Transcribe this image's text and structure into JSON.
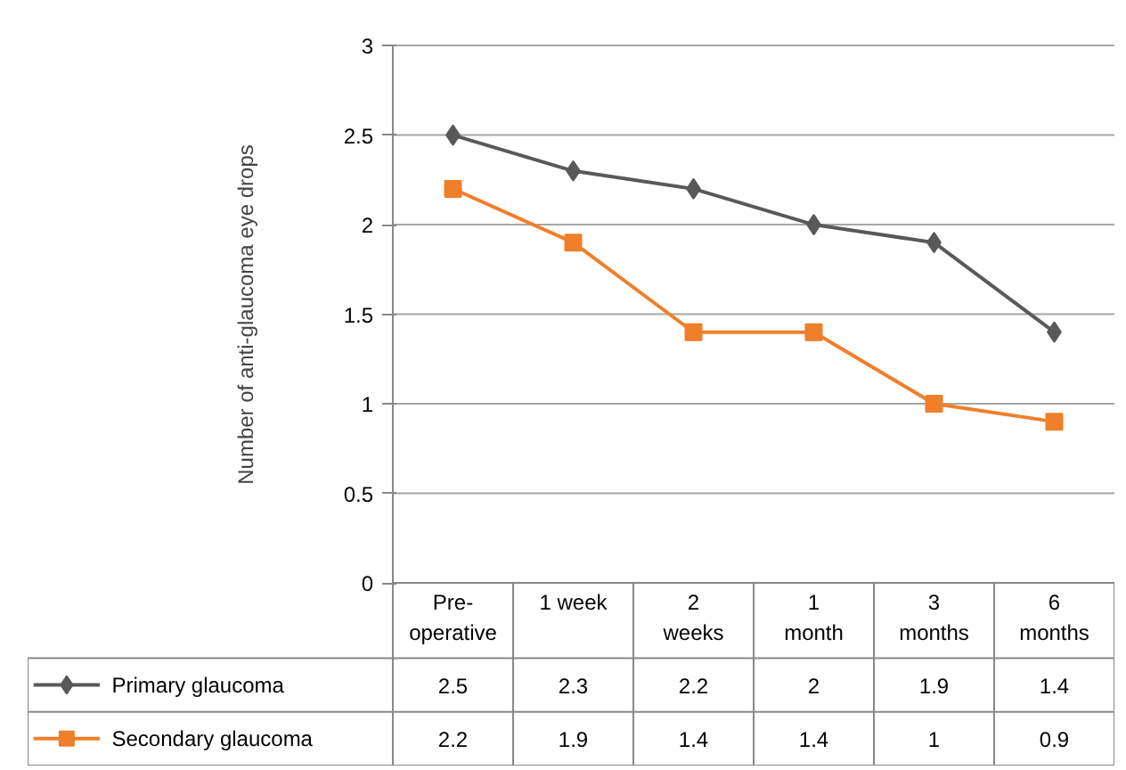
{
  "chart_data": {
    "type": "line",
    "ylabel": "Number of anti-glaucoma eye drops",
    "categories": [
      "Pre-operative",
      "1 week",
      "2 weeks",
      "1 month",
      "3 months",
      "6 months"
    ],
    "series": [
      {
        "name": "Primary glaucoma",
        "color": "#595959",
        "marker": "diamond",
        "values": [
          2.5,
          2.3,
          2.2,
          2,
          1.9,
          1.4
        ]
      },
      {
        "name": "Secondary glaucoma",
        "color": "#f07f2a",
        "marker": "square",
        "values": [
          2.2,
          1.9,
          1.4,
          1.4,
          1,
          0.9
        ]
      }
    ],
    "ylim": [
      0,
      3
    ],
    "yticks": [
      0,
      0.5,
      1,
      1.5,
      2,
      2.5,
      3
    ],
    "grid": "y",
    "legend": "bottom",
    "data_labels": true
  }
}
